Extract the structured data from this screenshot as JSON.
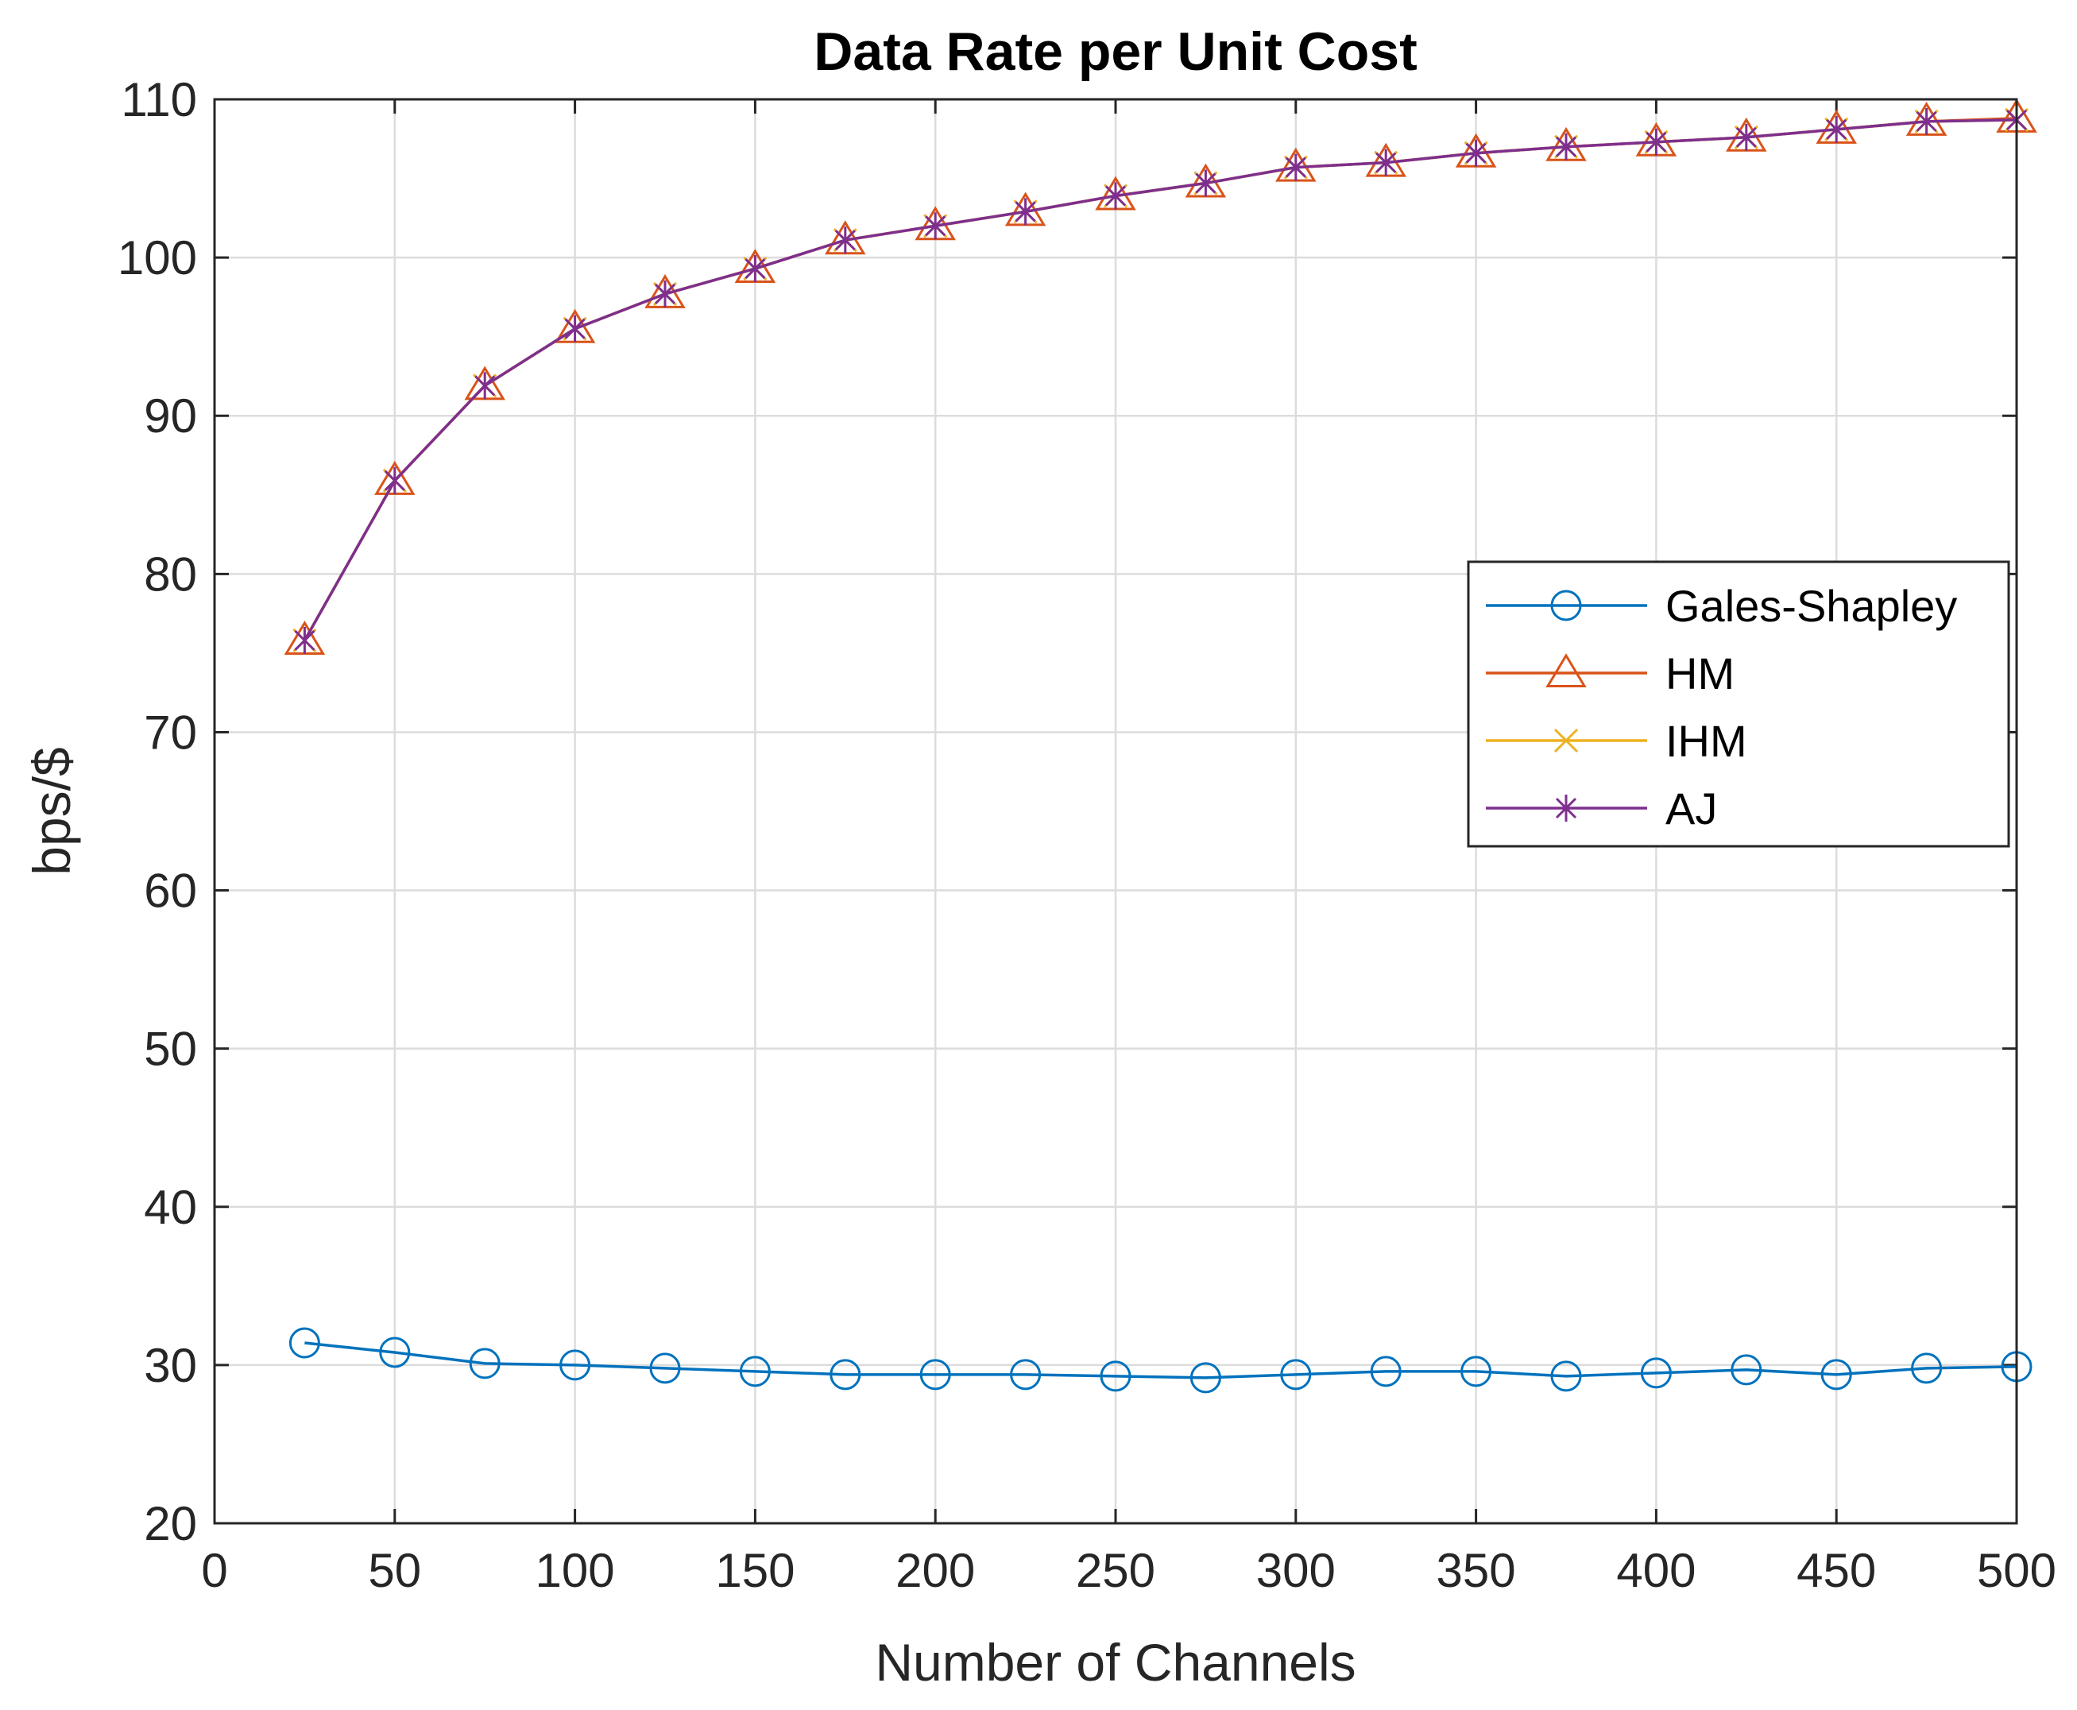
{
  "chart_data": {
    "type": "line",
    "title": "Data Rate per Unit Cost",
    "xlabel": "Number of Channels",
    "ylabel": "bps/$",
    "xlim": [
      0,
      500
    ],
    "ylim": [
      20,
      110
    ],
    "xticks": [
      0,
      50,
      100,
      150,
      200,
      250,
      300,
      350,
      400,
      450,
      500
    ],
    "yticks": [
      20,
      30,
      40,
      50,
      60,
      70,
      80,
      90,
      100,
      110
    ],
    "grid": true,
    "legend_location": "right",
    "x": [
      25,
      50,
      75,
      100,
      125,
      150,
      175,
      200,
      225,
      250,
      275,
      300,
      325,
      350,
      375,
      400,
      425,
      450,
      475,
      500
    ],
    "series": [
      {
        "name": "Gales-Shapley",
        "color": "#0072bd",
        "marker": "circle",
        "values": [
          31.4,
          30.8,
          30.1,
          30.0,
          29.8,
          29.6,
          29.4,
          29.4,
          29.4,
          29.3,
          29.2,
          29.4,
          29.6,
          29.6,
          29.3,
          29.5,
          29.7,
          29.4,
          29.8,
          29.9
        ]
      },
      {
        "name": "HM",
        "color": "#d95319",
        "marker": "triangle",
        "values": [
          75.8,
          85.9,
          91.9,
          95.5,
          97.7,
          99.3,
          101.1,
          102.0,
          102.9,
          103.9,
          104.7,
          105.7,
          106.0,
          106.6,
          107.0,
          107.3,
          107.6,
          108.1,
          108.6,
          108.8
        ]
      },
      {
        "name": "IHM",
        "color": "#edb120",
        "marker": "x",
        "values": [
          75.8,
          85.9,
          91.9,
          95.5,
          97.7,
          99.3,
          101.1,
          102.0,
          102.9,
          103.9,
          104.7,
          105.7,
          106.0,
          106.6,
          107.0,
          107.3,
          107.6,
          108.1,
          108.6,
          108.7
        ]
      },
      {
        "name": "AJ",
        "color": "#7e2f8e",
        "marker": "asterisk",
        "values": [
          75.8,
          85.9,
          91.9,
          95.5,
          97.7,
          99.3,
          101.1,
          102.0,
          102.9,
          103.9,
          104.7,
          105.7,
          106.0,
          106.6,
          107.0,
          107.3,
          107.6,
          108.1,
          108.6,
          108.7
        ]
      }
    ]
  }
}
